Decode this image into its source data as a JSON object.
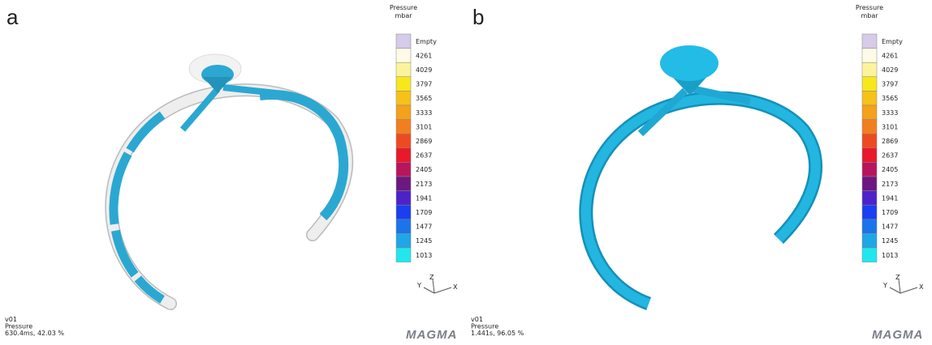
{
  "panels": [
    {
      "label": "a",
      "legend": {
        "title": "Pressure",
        "unit": "mbar",
        "entries": [
          {
            "label": "Empty",
            "color": "#d6cbe8"
          },
          {
            "label": "4261",
            "color": "#fdfbe8"
          },
          {
            "label": "4029",
            "color": "#fbf49c"
          },
          {
            "label": "3797",
            "color": "#f7e81c"
          },
          {
            "label": "3565",
            "color": "#f6c21a"
          },
          {
            "label": "3333",
            "color": "#f4a11c"
          },
          {
            "label": "3101",
            "color": "#f27f1f"
          },
          {
            "label": "2869",
            "color": "#ee4a22"
          },
          {
            "label": "2637",
            "color": "#e8192a"
          },
          {
            "label": "2405",
            "color": "#b8155c"
          },
          {
            "label": "2173",
            "color": "#6d1880"
          },
          {
            "label": "1941",
            "color": "#4d23c9"
          },
          {
            "label": "1709",
            "color": "#1b3ef0"
          },
          {
            "label": "1477",
            "color": "#1c74ea"
          },
          {
            "label": "1245",
            "color": "#1fa6e6"
          },
          {
            "label": "1013",
            "color": "#22e6ee"
          }
        ]
      },
      "axes": {
        "y": "Y",
        "z": "Z",
        "x": "X"
      },
      "info": [
        "v01",
        "Pressure",
        "630.4ms, 42.03 %"
      ],
      "logo": "MAGMA"
    },
    {
      "label": "b",
      "legend": {
        "title": "Pressure",
        "unit": "mbar",
        "entries": [
          {
            "label": "Empty",
            "color": "#d6cbe8"
          },
          {
            "label": "4261",
            "color": "#fdfbe8"
          },
          {
            "label": "4029",
            "color": "#fbf49c"
          },
          {
            "label": "3797",
            "color": "#f7e81c"
          },
          {
            "label": "3565",
            "color": "#f6c21a"
          },
          {
            "label": "3333",
            "color": "#f4a11c"
          },
          {
            "label": "3101",
            "color": "#f27f1f"
          },
          {
            "label": "2869",
            "color": "#ee4a22"
          },
          {
            "label": "2637",
            "color": "#e8192a"
          },
          {
            "label": "2405",
            "color": "#b8155c"
          },
          {
            "label": "2173",
            "color": "#6d1880"
          },
          {
            "label": "1941",
            "color": "#4d23c9"
          },
          {
            "label": "1709",
            "color": "#1b3ef0"
          },
          {
            "label": "1477",
            "color": "#1c74ea"
          },
          {
            "label": "1245",
            "color": "#1fa6e6"
          },
          {
            "label": "1013",
            "color": "#22e6ee"
          }
        ]
      },
      "axes": {
        "y": "Y",
        "z": "Z",
        "x": "X"
      },
      "info": [
        "v01",
        "Pressure",
        "1.441s, 96.05 %"
      ],
      "logo": "MAGMA"
    }
  ]
}
